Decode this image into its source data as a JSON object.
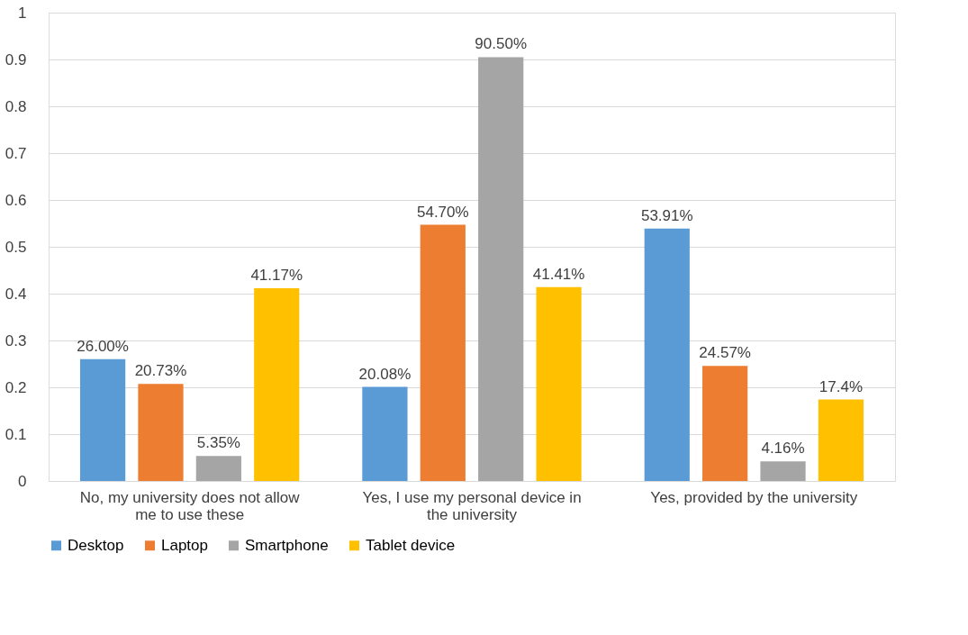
{
  "chart_data": {
    "type": "bar",
    "categories": [
      "No, my university does not allow me to use these",
      "Yes, I use my personal device in the university",
      "Yes, provided by the university"
    ],
    "series": [
      {
        "name": "Desktop",
        "color": "#5b9bd5",
        "values": [
          0.26,
          0.2008,
          0.5391
        ],
        "value_labels": [
          "26.00%",
          "20.08%",
          "53.91%"
        ]
      },
      {
        "name": "Laptop",
        "color": "#ed7d31",
        "values": [
          0.2073,
          0.547,
          0.2457
        ],
        "value_labels": [
          "20.73%",
          "54.70%",
          "24.57%"
        ]
      },
      {
        "name": "Smartphone",
        "color": "#a5a5a5",
        "values": [
          0.0535,
          0.905,
          0.0416
        ],
        "value_labels": [
          "5.35%",
          "90.50%",
          "4.16%"
        ]
      },
      {
        "name": "Tablet device",
        "color": "#ffc000",
        "values": [
          0.4117,
          0.4141,
          0.174
        ],
        "value_labels": [
          "41.17%",
          "41.41%",
          "17.4%"
        ]
      }
    ],
    "ylim": [
      0,
      1
    ],
    "yticks": [
      0,
      0.1,
      0.2,
      0.3,
      0.4,
      0.5,
      0.6,
      0.7,
      0.8,
      0.9,
      1
    ],
    "grid": "y",
    "legend": "bottom"
  }
}
